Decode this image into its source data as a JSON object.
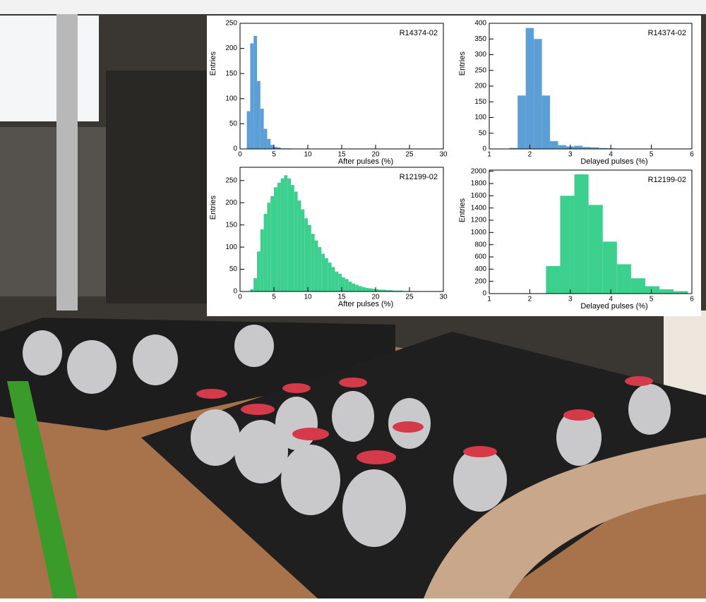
{
  "chart_data": [
    {
      "type": "histogram",
      "title": "R14374-02",
      "xlabel": "After pulses (%)",
      "ylabel": "Entries",
      "color": "#5b9fd6",
      "bins": [
        1,
        1.5,
        2,
        2.5,
        3,
        3.5,
        4,
        4.5,
        5,
        5.5,
        6,
        6.5,
        7,
        7.5
      ],
      "values": [
        75,
        210,
        225,
        135,
        80,
        40,
        20,
        8,
        4,
        3,
        1,
        1,
        1
      ],
      "xlim": [
        0,
        30
      ],
      "xticks": [
        0,
        5,
        10,
        15,
        20,
        25,
        30
      ],
      "ylim": [
        0,
        250
      ],
      "yticks": [
        0,
        50,
        100,
        150,
        200,
        250
      ]
    },
    {
      "type": "histogram",
      "title": "R14374-02",
      "xlabel": "Delayed pulses (%)",
      "ylabel": "Entries",
      "color": "#5b9fd6",
      "bins": [
        1.5,
        1.7,
        1.9,
        2.1,
        2.3,
        2.5,
        2.7,
        2.9,
        3.1,
        3.3,
        3.5,
        3.7,
        3.9,
        4.1
      ],
      "values": [
        3,
        170,
        385,
        350,
        170,
        25,
        12,
        8,
        10,
        6,
        5,
        3,
        2
      ],
      "xlim": [
        1,
        6
      ],
      "xticks": [
        1,
        2,
        3,
        4,
        5,
        6
      ],
      "ylim": [
        0,
        400
      ],
      "yticks": [
        0,
        50,
        100,
        150,
        200,
        250,
        300,
        350,
        400
      ]
    },
    {
      "type": "histogram",
      "title": "R12199-02",
      "xlabel": "After pulses (%)",
      "ylabel": "Entries",
      "color": "#3ccf8e",
      "bins": [
        1.5,
        2,
        2.5,
        3,
        3.5,
        4,
        4.5,
        5,
        5.5,
        6,
        6.5,
        7,
        7.5,
        8,
        8.5,
        9,
        9.5,
        10,
        10.5,
        11,
        11.5,
        12,
        12.5,
        13,
        13.5,
        14,
        14.5,
        15,
        15.5,
        16,
        16.5,
        17,
        17.5,
        18,
        18.5,
        19,
        19.5,
        20,
        20.5,
        21,
        21.5,
        22,
        22.5,
        23,
        23.5,
        24,
        24.5,
        25,
        25.5
      ],
      "values": [
        5,
        30,
        90,
        140,
        175,
        200,
        215,
        235,
        245,
        255,
        262,
        255,
        240,
        225,
        205,
        185,
        165,
        150,
        130,
        115,
        100,
        85,
        75,
        65,
        55,
        45,
        40,
        32,
        28,
        22,
        18,
        15,
        12,
        10,
        8,
        7,
        6,
        5,
        4,
        4,
        3,
        3,
        2,
        2,
        2,
        1,
        1,
        1
      ],
      "xlim": [
        0,
        30
      ],
      "xticks": [
        0,
        5,
        10,
        15,
        20,
        25,
        30
      ],
      "ylim": [
        0,
        280
      ],
      "yticks": [
        0,
        50,
        100,
        150,
        200,
        250
      ]
    },
    {
      "type": "histogram",
      "title": "R12199-02",
      "xlabel": "Delayed pulses (%)",
      "ylabel": "Entries",
      "color": "#3ccf8e",
      "bins": [
        2.4,
        2.75,
        3.1,
        3.45,
        3.8,
        4.15,
        4.5,
        4.85,
        5.2,
        5.55,
        5.9
      ],
      "values": [
        450,
        1600,
        1950,
        1450,
        850,
        480,
        250,
        120,
        70,
        40
      ],
      "xlim": [
        1,
        6
      ],
      "xticks": [
        1,
        2,
        3,
        4,
        5,
        6
      ],
      "ylim": [
        0,
        2020
      ],
      "yticks": [
        0,
        200,
        400,
        600,
        800,
        1000,
        1200,
        1400,
        1600,
        1800,
        2000
      ]
    }
  ]
}
